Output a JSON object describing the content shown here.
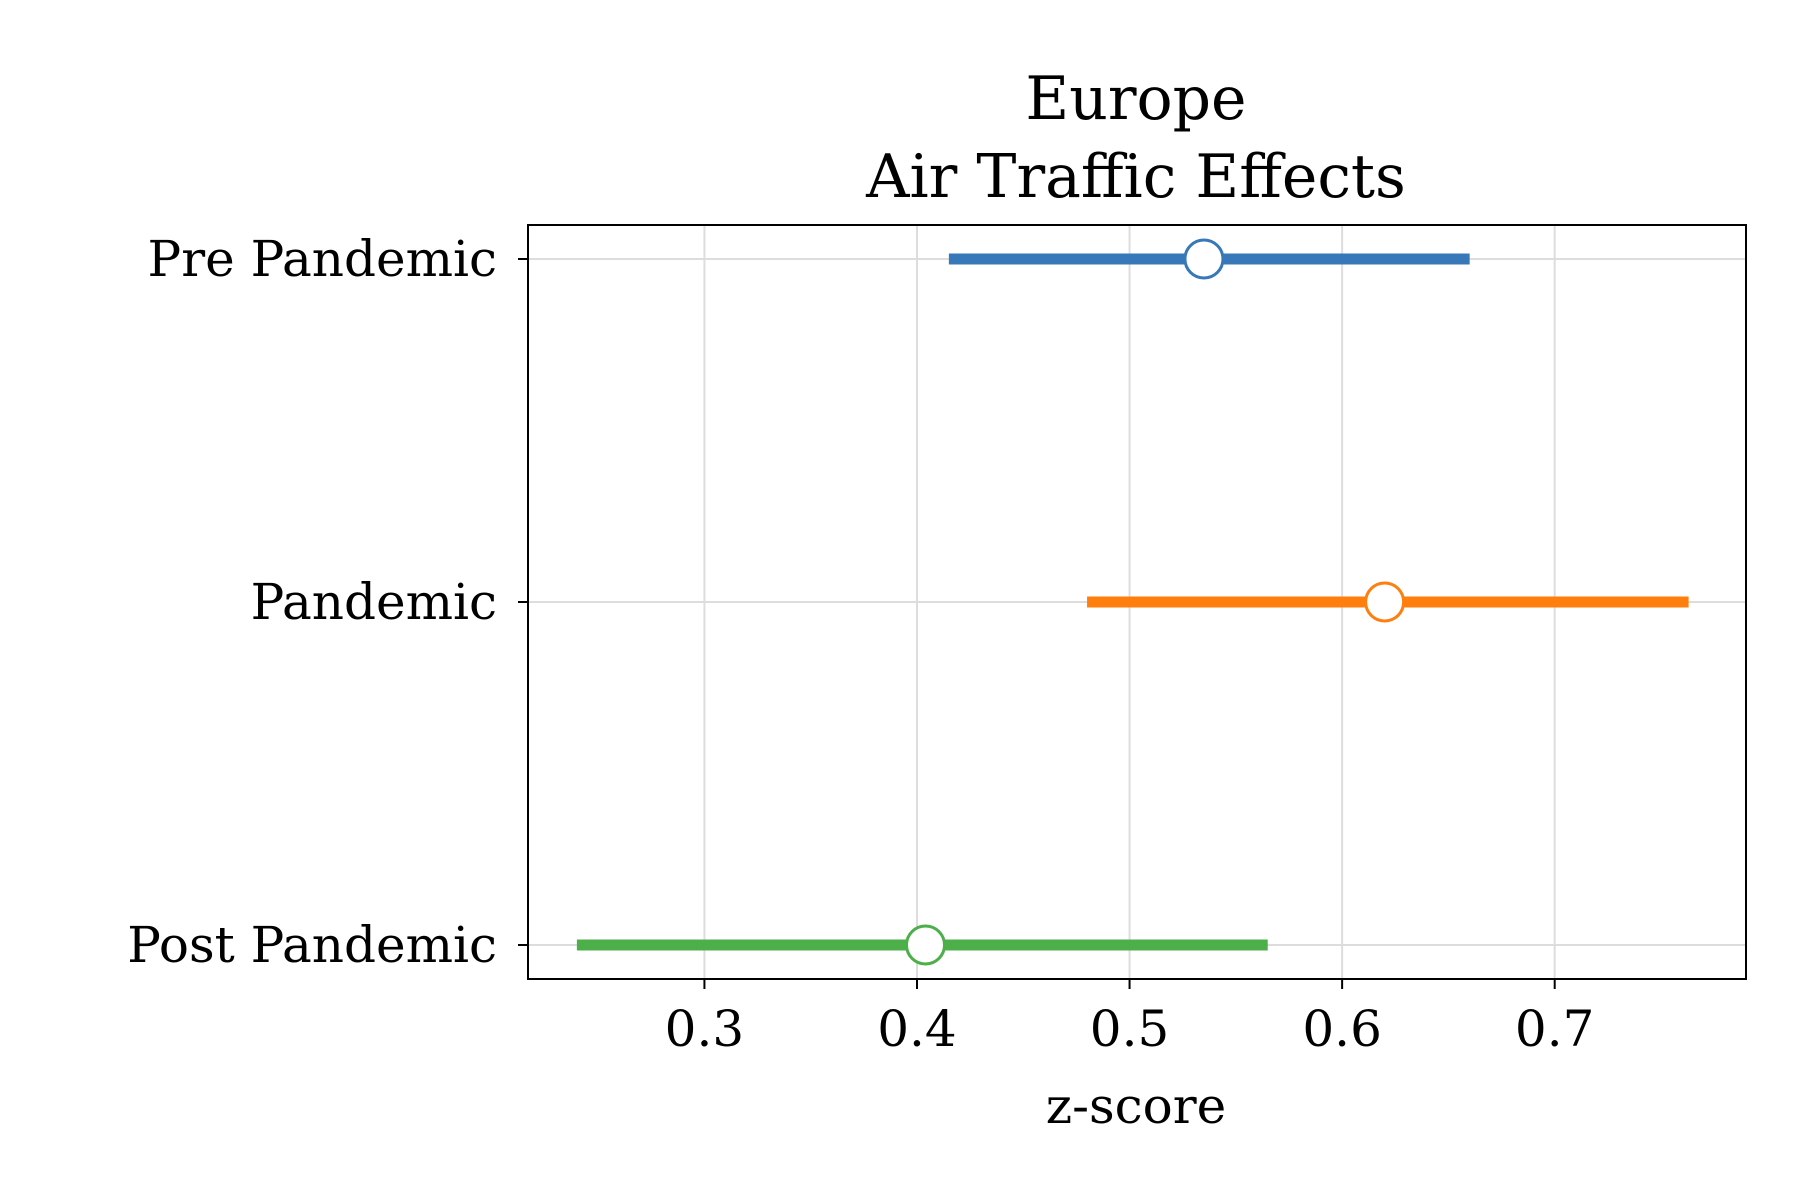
{
  "chart_data": {
    "type": "forest",
    "title": "Europe",
    "subtitle": "Air Traffic Effects",
    "xlabel": "z-score",
    "ylabel": "",
    "xlim": [
      0.217,
      0.79
    ],
    "x_ticks": [
      0.3,
      0.4,
      0.5,
      0.6,
      0.7
    ],
    "x_tick_labels": [
      "0.3",
      "0.4",
      "0.5",
      "0.6",
      "0.7"
    ],
    "grid": true,
    "legend": "none",
    "categories": [
      "Pre Pandemic",
      "Pandemic",
      "Post Pandemic"
    ],
    "series": [
      {
        "category": "Pre Pandemic",
        "estimate": 0.535,
        "lower": 0.415,
        "upper": 0.66,
        "color": "#3778b8"
      },
      {
        "category": "Pandemic",
        "estimate": 0.62,
        "lower": 0.48,
        "upper": 0.763,
        "color": "#ff7f0e"
      },
      {
        "category": "Post Pandemic",
        "estimate": 0.404,
        "lower": 0.24,
        "upper": 0.565,
        "color": "#4daf4a"
      }
    ]
  }
}
